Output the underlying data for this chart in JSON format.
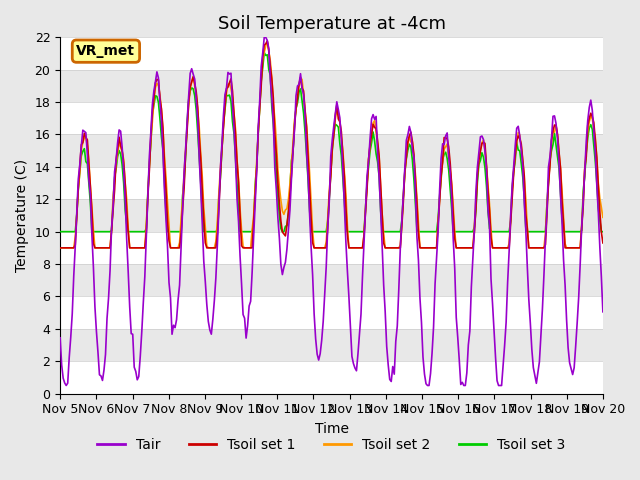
{
  "title": "Soil Temperature at -4cm",
  "xlabel": "Time",
  "ylabel": "Temperature (C)",
  "ylim": [
    0,
    22
  ],
  "xlim": [
    0,
    360
  ],
  "background_color": "#e8e8e8",
  "plot_bg_color": "#e8e8e8",
  "grid_color": "#ffffff",
  "tair_color": "#9900cc",
  "tsoil1_color": "#cc0000",
  "tsoil2_color": "#ff9900",
  "tsoil3_color": "#00cc00",
  "annotation_text": "VR_met",
  "annotation_box_color": "#ffff99",
  "annotation_border_color": "#cc6600",
  "title_fontsize": 13,
  "axis_fontsize": 10,
  "tick_fontsize": 9,
  "legend_fontsize": 10,
  "n_points": 360,
  "days": [
    "Nov 5",
    "Nov 6",
    "Nov 7",
    "Nov 8",
    "Nov 9",
    "Nov 10",
    "Nov 11",
    "Nov 12",
    "Nov 13",
    "Nov 14",
    "Nov 15",
    "Nov 16",
    "Nov 17",
    "Nov 18",
    "Nov 19",
    "Nov 20"
  ],
  "tick_positions": [
    0,
    24,
    48,
    72,
    96,
    120,
    144,
    168,
    192,
    216,
    240,
    264,
    288,
    312,
    336,
    360
  ]
}
